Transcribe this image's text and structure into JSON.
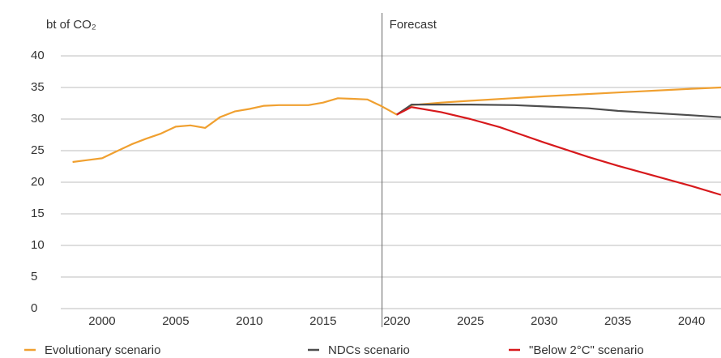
{
  "chart_data": {
    "type": "line",
    "y_label": "bt of CO₂",
    "annotation": {
      "text": "Forecast",
      "x": 2019
    },
    "xlim": [
      1997.2,
      2042
    ],
    "xticks": [
      2000,
      2005,
      2010,
      2015,
      2020,
      2025,
      2030,
      2035,
      2040
    ],
    "ylim": [
      0,
      40
    ],
    "yticks": [
      0,
      5,
      10,
      15,
      20,
      25,
      30,
      35,
      40
    ],
    "grid": true,
    "legend": "bottom",
    "series": [
      {
        "name": "Evolutionary scenario",
        "color": "#f0a030",
        "x": [
          1998,
          1999,
          2000,
          2001,
          2002,
          2003,
          2004,
          2005,
          2006,
          2007,
          2008,
          2009,
          2010,
          2011,
          2012,
          2013,
          2014,
          2015,
          2016,
          2017,
          2018,
          2019,
          2020,
          2021,
          2023,
          2025,
          2030,
          2035,
          2040,
          2042
        ],
        "values": [
          23.2,
          23.5,
          23.8,
          24.9,
          26.0,
          26.9,
          27.7,
          28.8,
          29.0,
          28.6,
          30.3,
          31.2,
          31.6,
          32.1,
          32.2,
          32.2,
          32.2,
          32.6,
          33.3,
          33.2,
          33.1,
          32.0,
          30.7,
          32.2,
          32.6,
          32.9,
          33.6,
          34.2,
          34.8,
          35.0
        ]
      },
      {
        "name": "NDCs scenario",
        "color": "#4d4d4d",
        "x": [
          2020,
          2021,
          2025,
          2028,
          2030,
          2033,
          2035,
          2040,
          2042
        ],
        "values": [
          30.7,
          32.3,
          32.3,
          32.2,
          32.0,
          31.7,
          31.3,
          30.6,
          30.3
        ]
      },
      {
        "name": "\"Below 2°C\" scenario",
        "color": "#d7191c",
        "x": [
          2020,
          2021,
          2023,
          2025,
          2027,
          2030,
          2033,
          2035,
          2040,
          2042
        ],
        "values": [
          30.7,
          31.9,
          31.1,
          30.0,
          28.7,
          26.3,
          24.0,
          22.6,
          19.4,
          18.0
        ]
      }
    ]
  }
}
